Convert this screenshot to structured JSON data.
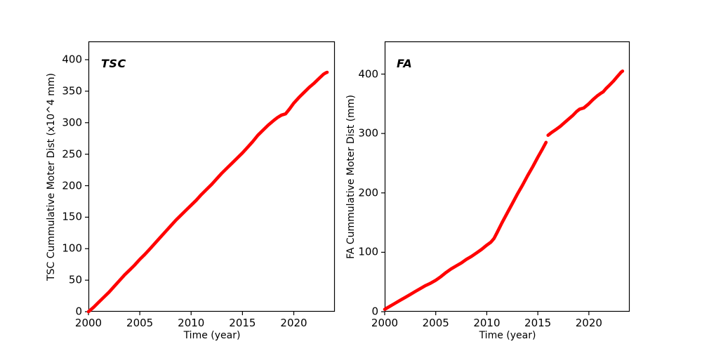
{
  "figure": {
    "background": "#ffffff"
  },
  "chart_data": [
    {
      "type": "line",
      "title": "",
      "annotation": "TSC",
      "xlabel": "Time (year)",
      "ylabel": "TSC Cummulative Moter Dist (x10^4 mm)",
      "xlim": [
        2000,
        2024
      ],
      "ylim": [
        0,
        429
      ],
      "xticks": [
        2000,
        2005,
        2010,
        2015,
        2020
      ],
      "yticks": [
        0,
        50,
        100,
        150,
        200,
        250,
        300,
        350,
        400
      ],
      "grid": false,
      "legend": "none",
      "line_color": "#ff0000",
      "series": [
        {
          "name": "TSC cumulative motor distance",
          "segments": [
            [
              [
                2000.0,
                0
              ],
              [
                2000.5,
                7
              ],
              [
                2001.0,
                15
              ],
              [
                2001.5,
                23
              ],
              [
                2002.0,
                31
              ],
              [
                2002.5,
                40
              ],
              [
                2003.0,
                49
              ],
              [
                2003.5,
                58
              ],
              [
                2004.0,
                66
              ],
              [
                2004.5,
                74
              ],
              [
                2005.0,
                83
              ],
              [
                2005.5,
                91
              ],
              [
                2006.0,
                100
              ],
              [
                2006.5,
                109
              ],
              [
                2007.0,
                118
              ],
              [
                2007.5,
                127
              ],
              [
                2008.0,
                136
              ],
              [
                2008.5,
                145
              ],
              [
                2009.0,
                153
              ],
              [
                2009.5,
                161
              ],
              [
                2010.0,
                169
              ],
              [
                2010.5,
                177
              ],
              [
                2011.0,
                186
              ],
              [
                2011.5,
                194
              ],
              [
                2012.0,
                202
              ],
              [
                2012.5,
                211
              ],
              [
                2013.0,
                220
              ],
              [
                2013.5,
                228
              ],
              [
                2014.0,
                236
              ],
              [
                2014.5,
                244
              ],
              [
                2015.0,
                252
              ],
              [
                2015.5,
                261
              ],
              [
                2016.0,
                270
              ],
              [
                2016.5,
                280
              ],
              [
                2017.0,
                288
              ],
              [
                2017.5,
                296
              ],
              [
                2018.0,
                303
              ],
              [
                2018.4,
                308
              ],
              [
                2018.8,
                312
              ],
              [
                2019.2,
                314
              ],
              [
                2019.6,
                322
              ],
              [
                2020.0,
                331
              ],
              [
                2020.5,
                340
              ],
              [
                2021.0,
                348
              ],
              [
                2021.5,
                356
              ],
              [
                2022.0,
                363
              ],
              [
                2022.5,
                371
              ],
              [
                2022.9,
                377
              ],
              [
                2023.1,
                379
              ],
              [
                2023.25,
                380
              ]
            ]
          ]
        }
      ]
    },
    {
      "type": "line",
      "title": "",
      "annotation": "FA",
      "xlabel": "Time (year)",
      "ylabel": "FA Cummulative Moter Dist (mm)",
      "xlim": [
        2000,
        2024
      ],
      "ylim": [
        0,
        455
      ],
      "xticks": [
        2000,
        2005,
        2010,
        2015,
        2020
      ],
      "yticks": [
        0,
        100,
        200,
        300,
        400
      ],
      "grid": false,
      "legend": "none",
      "line_color": "#ff0000",
      "series": [
        {
          "name": "FA cumulative motor distance",
          "segments": [
            [
              [
                2000.0,
                4
              ],
              [
                2000.5,
                9
              ],
              [
                2001.0,
                14
              ],
              [
                2001.5,
                19
              ],
              [
                2002.0,
                24
              ],
              [
                2002.5,
                29
              ],
              [
                2003.0,
                34
              ],
              [
                2003.5,
                39
              ],
              [
                2004.0,
                44
              ],
              [
                2004.5,
                48
              ],
              [
                2005.0,
                53
              ],
              [
                2005.5,
                59
              ],
              [
                2006.0,
                66
              ],
              [
                2006.5,
                72
              ],
              [
                2007.0,
                77
              ],
              [
                2007.5,
                82
              ],
              [
                2008.0,
                88
              ],
              [
                2008.5,
                93
              ],
              [
                2009.0,
                99
              ],
              [
                2009.5,
                105
              ],
              [
                2010.0,
                112
              ],
              [
                2010.4,
                117
              ],
              [
                2010.7,
                123
              ],
              [
                2011.0,
                133
              ],
              [
                2011.5,
                150
              ],
              [
                2012.0,
                166
              ],
              [
                2012.5,
                182
              ],
              [
                2013.0,
                198
              ],
              [
                2013.5,
                213
              ],
              [
                2014.0,
                229
              ],
              [
                2014.5,
                244
              ],
              [
                2015.0,
                260
              ],
              [
                2015.4,
                272
              ],
              [
                2015.8,
                285
              ]
            ],
            [
              [
                2016.0,
                297
              ],
              [
                2016.3,
                301
              ],
              [
                2016.8,
                307
              ],
              [
                2017.2,
                312
              ],
              [
                2017.6,
                318
              ],
              [
                2018.0,
                324
              ],
              [
                2018.4,
                330
              ],
              [
                2018.8,
                337
              ],
              [
                2019.1,
                341
              ],
              [
                2019.5,
                343
              ],
              [
                2020.0,
                350
              ],
              [
                2020.4,
                357
              ],
              [
                2020.8,
                363
              ],
              [
                2021.2,
                368
              ],
              [
                2021.4,
                370
              ],
              [
                2021.7,
                376
              ],
              [
                2022.0,
                381
              ],
              [
                2022.4,
                388
              ],
              [
                2022.8,
                396
              ],
              [
                2023.0,
                400
              ],
              [
                2023.15,
                403
              ],
              [
                2023.3,
                405
              ]
            ]
          ]
        }
      ]
    }
  ]
}
